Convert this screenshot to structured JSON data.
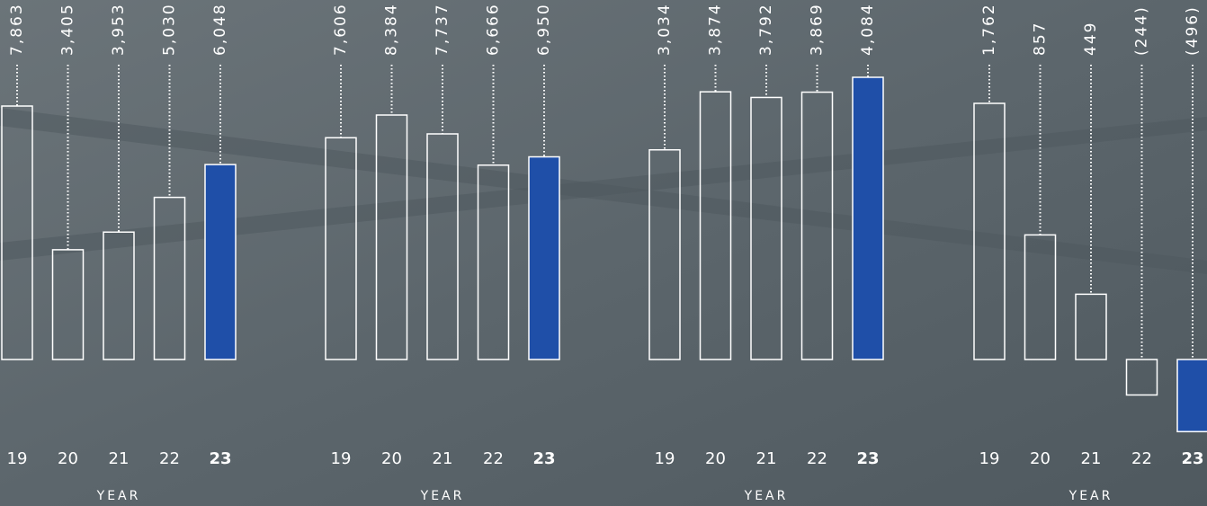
{
  "chart_data": [
    {
      "type": "bar",
      "categories": [
        "19",
        "20",
        "21",
        "22",
        "23"
      ],
      "values": [
        7863,
        3405,
        3953,
        5030,
        6048
      ],
      "value_labels": [
        "7,863",
        "3,405",
        "3,953",
        "5,030",
        "6,048"
      ],
      "colors": [
        "none",
        "none",
        "none",
        "none",
        "#1f4fa8"
      ],
      "x_label": "YEAR"
    },
    {
      "type": "bar",
      "categories": [
        "19",
        "20",
        "21",
        "22",
        "23"
      ],
      "values": [
        7606,
        8384,
        7737,
        6666,
        6950
      ],
      "value_labels": [
        "7,606",
        "8,384",
        "7,737",
        "6,666",
        "6,950"
      ],
      "colors": [
        "none",
        "none",
        "none",
        "none",
        "#1f4fa8"
      ],
      "x_label": "YEAR"
    },
    {
      "type": "bar",
      "categories": [
        "19",
        "20",
        "21",
        "22",
        "23"
      ],
      "values": [
        3034,
        3874,
        3792,
        3869,
        4084
      ],
      "value_labels": [
        "3,034",
        "3,874",
        "3,792",
        "3,869",
        "4,084"
      ],
      "colors": [
        "none",
        "none",
        "none",
        "none",
        "#1f4fa8"
      ],
      "x_label": "YEAR"
    },
    {
      "type": "bar",
      "categories": [
        "19",
        "20",
        "21",
        "22",
        "23"
      ],
      "values": [
        1762,
        857,
        449,
        -244,
        -496
      ],
      "value_labels": [
        "1,762",
        "857",
        "449",
        "(244)",
        "(496)"
      ],
      "colors": [
        "none",
        "none",
        "none",
        "none",
        "#1f4fa8"
      ],
      "x_label": "YEAR"
    }
  ]
}
